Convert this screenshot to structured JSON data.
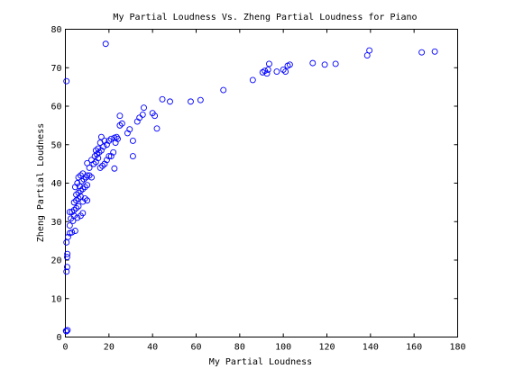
{
  "chart_data": {
    "type": "scatter",
    "title": "My Partial Loudness Vs. Zheng Partial Loudness for Piano",
    "xlabel": "My Partial Loudness",
    "ylabel": "Zheng Partial Loudness",
    "xlim": [
      0,
      180
    ],
    "ylim": [
      0,
      80
    ],
    "xticks": [
      "0",
      "20",
      "40",
      "60",
      "80",
      "100",
      "120",
      "140",
      "160",
      "180"
    ],
    "yticks": [
      "0",
      "10",
      "20",
      "30",
      "40",
      "50",
      "60",
      "70",
      "80"
    ],
    "grid": false,
    "marker": "circle",
    "marker_color": "#0000ff",
    "points": [
      [
        0.5,
        1.5
      ],
      [
        1.0,
        1.8
      ],
      [
        0.3,
        1.6
      ],
      [
        0.5,
        66.5
      ],
      [
        18.5,
        76.2
      ],
      [
        0.5,
        17.0
      ],
      [
        0.8,
        18.2
      ],
      [
        0.8,
        20.8
      ],
      [
        0.9,
        21.6
      ],
      [
        0.5,
        24.6
      ],
      [
        1.2,
        26.0
      ],
      [
        2.0,
        27.0
      ],
      [
        3.0,
        27.2
      ],
      [
        4.5,
        27.6
      ],
      [
        2.0,
        29.0
      ],
      [
        2.5,
        30.8
      ],
      [
        3.5,
        30.2
      ],
      [
        4.0,
        31.5
      ],
      [
        5.5,
        31.0
      ],
      [
        7.0,
        31.5
      ],
      [
        8.0,
        32.2
      ],
      [
        2.0,
        32.5
      ],
      [
        3.0,
        32.5
      ],
      [
        4.0,
        33.0
      ],
      [
        5.0,
        33.5
      ],
      [
        6.0,
        34.0
      ],
      [
        4.0,
        35.0
      ],
      [
        5.0,
        35.5
      ],
      [
        6.0,
        36.0
      ],
      [
        7.0,
        36.5
      ],
      [
        8.0,
        35.2
      ],
      [
        9.0,
        36.0
      ],
      [
        10.0,
        35.5
      ],
      [
        5.0,
        37.0
      ],
      [
        6.0,
        37.5
      ],
      [
        7.0,
        38.0
      ],
      [
        8.0,
        38.5
      ],
      [
        9.0,
        39.0
      ],
      [
        10.0,
        39.5
      ],
      [
        4.5,
        39.0
      ],
      [
        6.5,
        39.2
      ],
      [
        5.5,
        40.0
      ],
      [
        7.5,
        40.5
      ],
      [
        8.5,
        41.0
      ],
      [
        6.0,
        41.5
      ],
      [
        9.5,
        41.5
      ],
      [
        7.0,
        42.0
      ],
      [
        8.0,
        42.5
      ],
      [
        10.0,
        42.0
      ],
      [
        11.0,
        42.0
      ],
      [
        12.0,
        41.5
      ],
      [
        11.0,
        44.0
      ],
      [
        13.0,
        45.0
      ],
      [
        10.0,
        45.2
      ],
      [
        14.0,
        45.5
      ],
      [
        12.0,
        46.0
      ],
      [
        15.0,
        46.5
      ],
      [
        13.5,
        47.0
      ],
      [
        14.5,
        47.5
      ],
      [
        15.5,
        48.0
      ],
      [
        14.0,
        48.5
      ],
      [
        15.0,
        49.0
      ],
      [
        16.5,
        48.5
      ],
      [
        17.5,
        49.5
      ],
      [
        16.0,
        50.5
      ],
      [
        18.0,
        51.0
      ],
      [
        16.5,
        52.0
      ],
      [
        19.0,
        50.0
      ],
      [
        20.0,
        51.0
      ],
      [
        21.0,
        51.5
      ],
      [
        16.0,
        44.0
      ],
      [
        17.0,
        44.5
      ],
      [
        18.0,
        45.0
      ],
      [
        19.0,
        46.0
      ],
      [
        20.0,
        47.0
      ],
      [
        21.0,
        47.0
      ],
      [
        22.0,
        48.0
      ],
      [
        23.0,
        50.5
      ],
      [
        24.0,
        51.5
      ],
      [
        22.5,
        51.8
      ],
      [
        23.5,
        52.0
      ],
      [
        22.5,
        43.8
      ],
      [
        28.5,
        53.0
      ],
      [
        29.5,
        54.0
      ],
      [
        31.0,
        51.0
      ],
      [
        31.0,
        47.0
      ],
      [
        25.0,
        55.0
      ],
      [
        26.0,
        55.5
      ],
      [
        25.0,
        57.5
      ],
      [
        34.0,
        57.0
      ],
      [
        35.5,
        57.8
      ],
      [
        36.0,
        59.6
      ],
      [
        33.0,
        56.0
      ],
      [
        40.0,
        58.2
      ],
      [
        41.0,
        57.5
      ],
      [
        42.0,
        54.2
      ],
      [
        44.5,
        61.8
      ],
      [
        48.0,
        61.2
      ],
      [
        57.5,
        61.2
      ],
      [
        62.0,
        61.6
      ],
      [
        72.5,
        64.2
      ],
      [
        86.0,
        66.8
      ],
      [
        90.5,
        68.8
      ],
      [
        91.5,
        69.2
      ],
      [
        92.5,
        68.5
      ],
      [
        93.0,
        69.5
      ],
      [
        93.5,
        71.0
      ],
      [
        97.0,
        69.0
      ],
      [
        100.0,
        69.5
      ],
      [
        101.0,
        69.0
      ],
      [
        102.0,
        70.5
      ],
      [
        103.0,
        70.8
      ],
      [
        113.5,
        71.2
      ],
      [
        119.0,
        70.8
      ],
      [
        124.0,
        71.0
      ],
      [
        138.5,
        73.2
      ],
      [
        139.5,
        74.5
      ],
      [
        163.5,
        74.0
      ],
      [
        169.5,
        74.2
      ]
    ]
  }
}
